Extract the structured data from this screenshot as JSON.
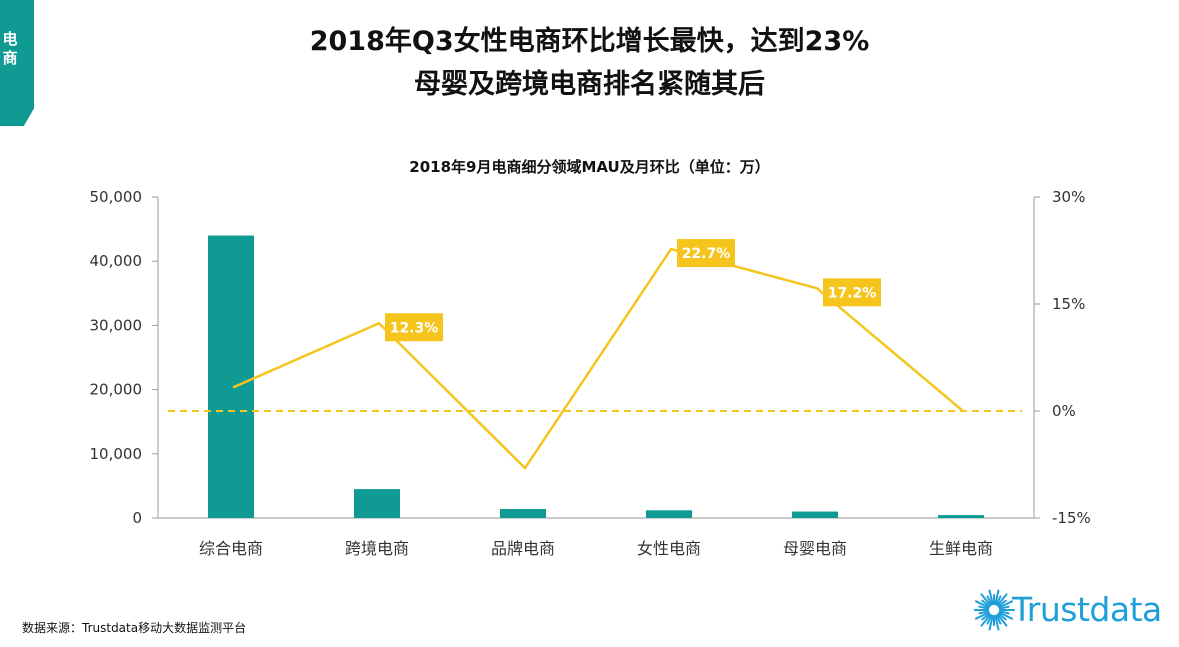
{
  "side_tab": {
    "label": "电商"
  },
  "header": {
    "title_line1": "2018年Q3女性电商环比增长最快，达到23%",
    "title_line2": "母婴及跨境电商排名紧随其后"
  },
  "colors": {
    "accent": "#0f9a94",
    "line": "#f5c51e",
    "label_bg": "#f5c51e",
    "logo": "#1f9fd9"
  },
  "chart_data": {
    "type": "bar",
    "title": "2018年9月电商细分领域MAU及月环比（单位：万）",
    "categories": [
      "综合电商",
      "跨境电商",
      "品牌电商",
      "女性电商",
      "母婴电商",
      "生鲜电商"
    ],
    "series": [
      {
        "name": "MAU",
        "type": "bar",
        "axis": "left",
        "values": [
          44000,
          4500,
          1400,
          1200,
          1000,
          450
        ]
      },
      {
        "name": "月环比",
        "type": "line",
        "axis": "right",
        "values": [
          3.3,
          12.3,
          -8.0,
          22.7,
          17.2,
          0.0
        ]
      }
    ],
    "point_labels": [
      {
        "index": 1,
        "text": "12.3%"
      },
      {
        "index": 3,
        "text": "22.7%"
      },
      {
        "index": 4,
        "text": "17.2%"
      }
    ],
    "y_left": {
      "ylim": [
        0,
        50000
      ],
      "ticks": [
        "0",
        "10,000",
        "20,000",
        "30,000",
        "40,000",
        "50,000"
      ],
      "tick_values": [
        0,
        10000,
        20000,
        30000,
        40000,
        50000
      ]
    },
    "y_right": {
      "ylim": [
        -15,
        30
      ],
      "ticks": [
        "-15%",
        "0%",
        "15%",
        "30%"
      ],
      "tick_values": [
        -15,
        0,
        15,
        30
      ]
    },
    "reference_line": {
      "value": 0,
      "style": "dashed"
    }
  },
  "footer": {
    "source": "数据来源：Trustdata移动大数据监测平台",
    "logo_text": "Trustdata"
  }
}
